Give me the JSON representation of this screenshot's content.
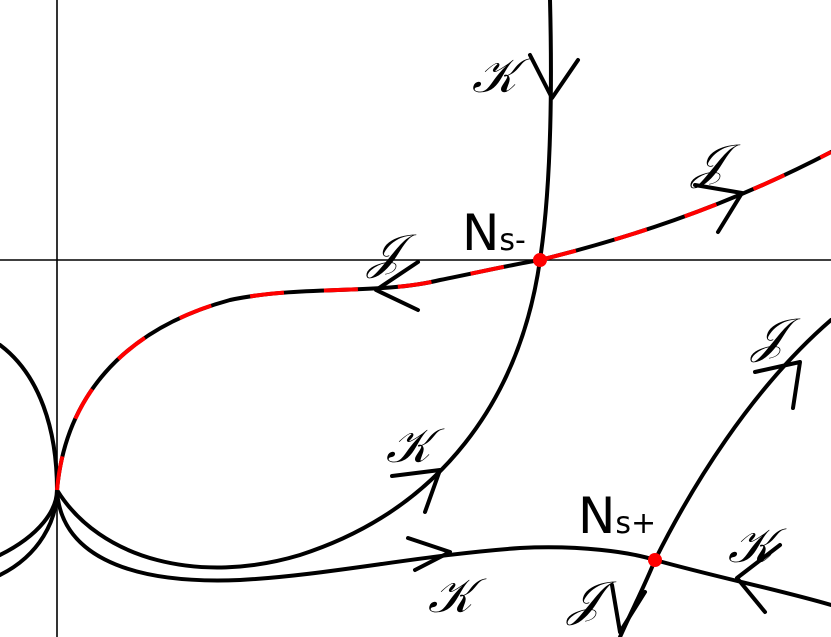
{
  "colors": {
    "background": "#ffffff",
    "curve": "#000000",
    "highlight": "#ff0000",
    "node": "#ff0000"
  },
  "nodes": {
    "ns_minus": {
      "main": "N",
      "sub": "s-"
    },
    "ns_plus": {
      "main": "N",
      "sub": "s+"
    }
  },
  "labels": {
    "k_top": "𝒦",
    "j_upper_right": "𝒥",
    "j_left": "𝒥",
    "k_middle": "𝒦",
    "k_bottom": "𝒦",
    "j_lower_right": "𝒥",
    "k_right": "𝒦",
    "j_bottom": "𝒥"
  }
}
